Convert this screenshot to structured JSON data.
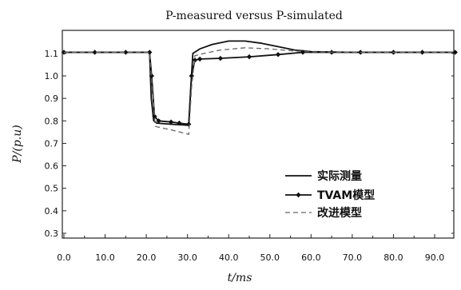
{
  "chart_data": {
    "type": "line",
    "title": "P-measured versus P-simulated",
    "xlabel": "t/ms",
    "ylabel": "P/(p.u)",
    "xlim": [
      0,
      95
    ],
    "ylim": [
      0.3,
      1.15
    ],
    "x_ticks": [
      "0.0",
      "10.0",
      "20.0",
      "30.0",
      "40.0",
      "50.0",
      "60.0",
      "70.0",
      "80.0",
      "90.0"
    ],
    "y_ticks": [
      "0.3",
      "0.4",
      "0.5",
      "0.6",
      "0.7",
      "0.8",
      "0.9",
      "1.0",
      "1.1"
    ],
    "grid": false,
    "legend_position": "lower-right",
    "series": [
      {
        "name": "实际测量",
        "color": "#111111",
        "style": "solid",
        "points": [
          [
            0,
            1.105
          ],
          [
            20.8,
            1.105
          ],
          [
            21.2,
            0.9
          ],
          [
            21.8,
            0.8
          ],
          [
            22.5,
            0.79
          ],
          [
            26,
            0.785
          ],
          [
            30.3,
            0.78
          ],
          [
            30.8,
            0.95
          ],
          [
            31.3,
            1.1
          ],
          [
            33,
            1.12
          ],
          [
            36,
            1.14
          ],
          [
            40,
            1.155
          ],
          [
            44,
            1.155
          ],
          [
            48,
            1.145
          ],
          [
            52,
            1.13
          ],
          [
            56,
            1.115
          ],
          [
            60,
            1.108
          ],
          [
            70,
            1.105
          ],
          [
            95,
            1.105
          ]
        ]
      },
      {
        "name": "TVAM模型",
        "color": "#111111",
        "style": "solid-diamond",
        "points": [
          [
            0,
            1.105
          ],
          [
            7.5,
            1.105
          ],
          [
            15,
            1.105
          ],
          [
            20.8,
            1.105
          ],
          [
            21.3,
            1.0
          ],
          [
            22,
            0.82
          ],
          [
            23,
            0.8
          ],
          [
            26,
            0.795
          ],
          [
            28,
            0.79
          ],
          [
            30.3,
            0.785
          ],
          [
            31,
            1.0
          ],
          [
            31.8,
            1.07
          ],
          [
            33,
            1.075
          ],
          [
            38,
            1.078
          ],
          [
            45,
            1.085
          ],
          [
            52,
            1.095
          ],
          [
            58,
            1.105
          ],
          [
            65,
            1.105
          ],
          [
            72,
            1.105
          ],
          [
            80,
            1.105
          ],
          [
            87,
            1.105
          ],
          [
            95,
            1.105
          ]
        ]
      },
      {
        "name": "改进模型",
        "color": "#666666",
        "style": "dashed",
        "points": [
          [
            0,
            1.105
          ],
          [
            20.8,
            1.105
          ],
          [
            21.4,
            0.95
          ],
          [
            22.2,
            0.775
          ],
          [
            26,
            0.76
          ],
          [
            30.3,
            0.74
          ],
          [
            31,
            0.95
          ],
          [
            31.8,
            1.09
          ],
          [
            34,
            1.1
          ],
          [
            38,
            1.115
          ],
          [
            44,
            1.125
          ],
          [
            50,
            1.12
          ],
          [
            55,
            1.112
          ],
          [
            60,
            1.107
          ],
          [
            70,
            1.105
          ],
          [
            95,
            1.105
          ]
        ]
      }
    ],
    "marker_x": [
      0,
      7.5,
      15,
      20.8,
      21.3,
      22,
      23,
      26,
      28,
      30.3,
      31,
      31.8,
      33,
      38,
      45,
      52,
      58,
      65,
      72,
      80,
      87,
      95
    ]
  }
}
